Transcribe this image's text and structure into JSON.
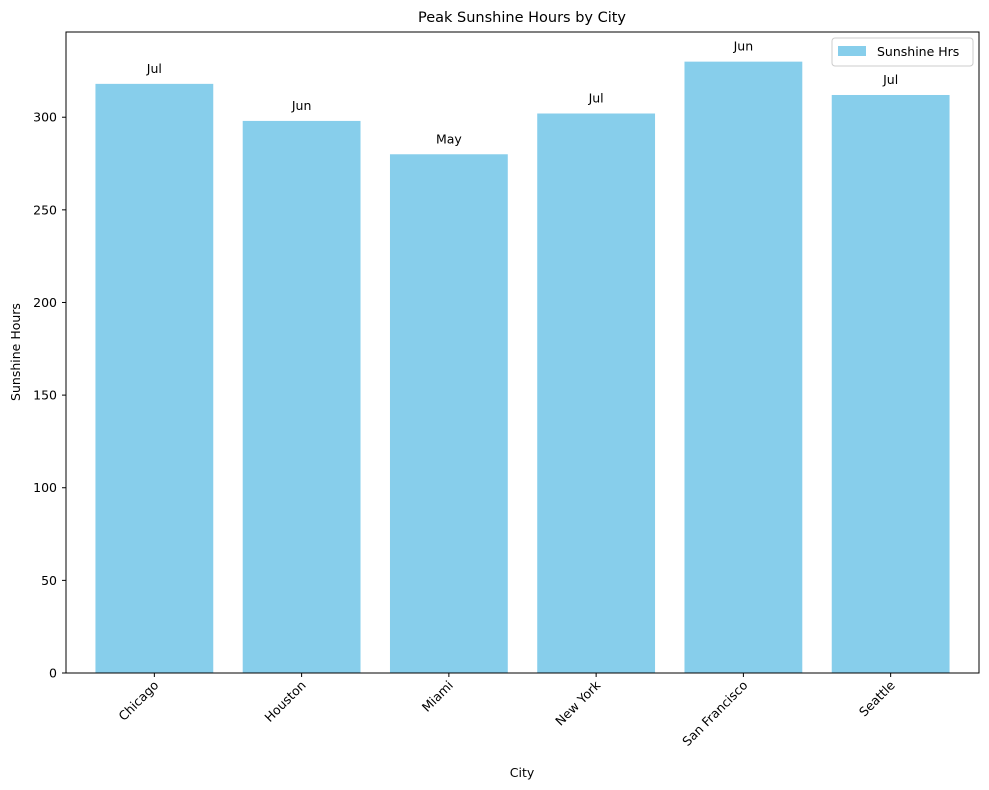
{
  "chart_data": {
    "type": "bar",
    "title": "Peak Sunshine Hours by City",
    "xlabel": "City",
    "ylabel": "Sunshine Hours",
    "categories": [
      "Chicago",
      "Houston",
      "Miami",
      "New York",
      "San Francisco",
      "Seattle"
    ],
    "series": [
      {
        "name": "Sunshine Hrs",
        "values": [
          318,
          298,
          280,
          302,
          330,
          312
        ],
        "color": "#87ceeb"
      }
    ],
    "bar_labels": [
      "Jul",
      "Jun",
      "May",
      "Jul",
      "Jun",
      "Jul"
    ],
    "ylim": [
      0,
      346
    ],
    "yticks": [
      0,
      50,
      100,
      150,
      200,
      250,
      300
    ],
    "grid": false,
    "legend": {
      "placement": "top-right",
      "entries": [
        "Sunshine Hrs"
      ]
    }
  }
}
